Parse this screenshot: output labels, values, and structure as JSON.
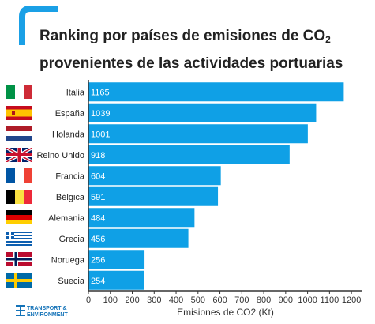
{
  "title_line1": "Ranking por países de emisiones de CO",
  "title_sub": "2",
  "title_line2": "provenientes de las actividades portuarias",
  "logo": {
    "line1": "TRANSPORT &",
    "line2": "ENVIRONMENT"
  },
  "colors": {
    "bar": "#0fa0e6",
    "accent": "#1aa0e6",
    "text": "#333333",
    "value_label": "#ffffff"
  },
  "chart_data": {
    "type": "bar",
    "orientation": "horizontal",
    "categories": [
      "Italia",
      "España",
      "Holanda",
      "Reino Unido",
      "Francia",
      "Bélgica",
      "Alemania",
      "Grecia",
      "Noruega",
      "Suecia"
    ],
    "values": [
      1165,
      1039,
      1001,
      918,
      604,
      591,
      484,
      456,
      256,
      254
    ],
    "xlabel": "Emisiones de CO2 (Kt)",
    "ylabel": "",
    "xlim": [
      0,
      1250
    ],
    "xticks": [
      0,
      100,
      200,
      300,
      400,
      500,
      600,
      700,
      800,
      900,
      1000,
      1100,
      1200
    ],
    "grid": false,
    "legend": "none",
    "flags": [
      "italy-flag",
      "spain-flag",
      "netherlands-flag",
      "uk-flag",
      "france-flag",
      "belgium-flag",
      "germany-flag",
      "greece-flag",
      "norway-flag",
      "sweden-flag"
    ]
  }
}
